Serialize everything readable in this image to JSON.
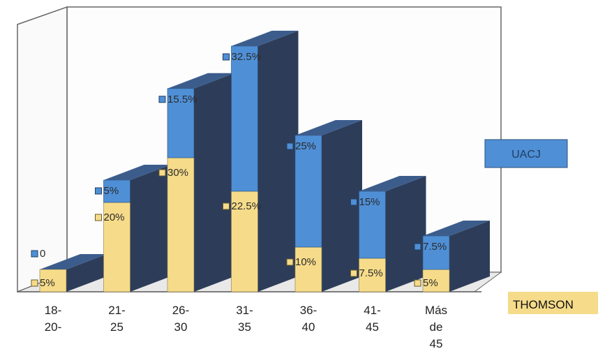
{
  "chart_data": {
    "type": "bar",
    "style": "3d-stacked",
    "categories": [
      [
        "18-",
        "20-"
      ],
      [
        "21-",
        "25"
      ],
      [
        "26-",
        "30"
      ],
      [
        "31-",
        "35"
      ],
      [
        "36-",
        "40"
      ],
      [
        "41-",
        "45"
      ],
      [
        "Más",
        "de",
        "45"
      ]
    ],
    "series": [
      {
        "name": "THOMSON",
        "color": "#f6dc8a",
        "values": [
          5,
          20,
          30,
          22.5,
          10,
          7.5,
          5
        ],
        "labels": [
          "5%",
          "20%",
          "30%",
          "22.5%",
          "10%",
          "7.5%",
          "5%"
        ]
      },
      {
        "name": "UACJ",
        "color": "#4f8fd6",
        "values": [
          0,
          5,
          15.5,
          32.5,
          25,
          15,
          7.5
        ],
        "labels": [
          "0",
          "5%",
          "15.5%",
          "32.5%",
          "25%",
          "15%",
          "7.5%"
        ]
      }
    ],
    "ylim": [
      0,
      60
    ],
    "grid": false,
    "legend": "right"
  },
  "colors": {
    "side": "#2d3d59",
    "top": "#3c5d8c",
    "floor": "#c8c8c8",
    "wall_stroke": "#666666"
  }
}
